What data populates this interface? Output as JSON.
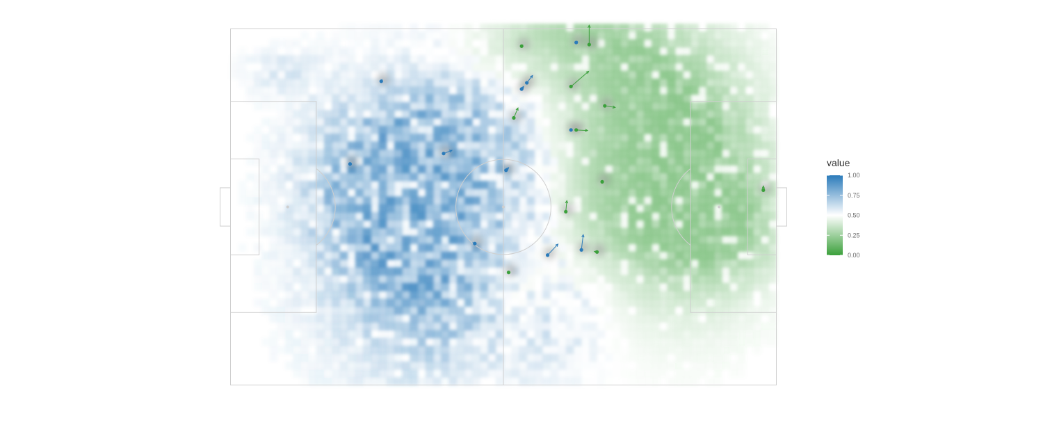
{
  "chart_data": {
    "type": "heatmap",
    "title": "",
    "xlabel": "",
    "ylabel": "",
    "xlim": [
      0,
      105
    ],
    "ylim": [
      0,
      68
    ],
    "legend": {
      "title": "value",
      "position": "right",
      "min": 0,
      "max": 1,
      "ticks": [
        "1.00",
        "0.75",
        "0.50",
        "0.25",
        "0.00"
      ],
      "tick_values": [
        1,
        0.75,
        0.5,
        0.25,
        0
      ]
    },
    "colors": {
      "high": "#2b7bba",
      "mid": "#ffffff",
      "low": "#3ba03b",
      "pitch_line": "#cfcfcf",
      "player_shadow": "#9a9a9a"
    },
    "heat_regions": [
      {
        "x": 38,
        "y": 28,
        "sx": 14,
        "sy": 17,
        "value": 0.95,
        "weight": 1.0
      },
      {
        "x": 48,
        "y": 40,
        "sx": 10,
        "sy": 13,
        "value": 0.9,
        "weight": 0.9
      },
      {
        "x": 28,
        "y": 40,
        "sx": 9,
        "sy": 10,
        "value": 0.85,
        "weight": 0.7
      },
      {
        "x": 55,
        "y": 52,
        "sx": 9,
        "sy": 8,
        "value": 0.85,
        "weight": 0.55
      },
      {
        "x": 62,
        "y": 14,
        "sx": 8,
        "sy": 8,
        "value": 0.8,
        "weight": 0.45
      },
      {
        "x": 10,
        "y": 60,
        "sx": 5,
        "sy": 3,
        "value": 0.85,
        "weight": 0.3
      },
      {
        "x": 72,
        "y": 48,
        "sx": 13,
        "sy": 17,
        "value": 0.05,
        "weight": 1.0
      },
      {
        "x": 88,
        "y": 40,
        "sx": 11,
        "sy": 16,
        "value": 0.05,
        "weight": 0.9
      },
      {
        "x": 60,
        "y": 62,
        "sx": 12,
        "sy": 6,
        "value": 0.1,
        "weight": 0.75
      },
      {
        "x": 55,
        "y": 18,
        "sx": 6,
        "sy": 8,
        "value": 0.1,
        "weight": 0.55
      },
      {
        "x": 95,
        "y": 30,
        "sx": 8,
        "sy": 7,
        "value": 0.08,
        "weight": 0.55
      }
    ],
    "players": [
      {
        "team": "home",
        "x": 29.0,
        "y": 58.0,
        "vx": 0.15,
        "vy": 0.3
      },
      {
        "team": "home",
        "x": 57.0,
        "y": 57.7,
        "vx": 1.1,
        "vy": 1.4
      },
      {
        "team": "home",
        "x": 41.0,
        "y": 44.2,
        "vx": 1.6,
        "vy": 0.6
      },
      {
        "team": "home",
        "x": 23.0,
        "y": 42.2,
        "vx": 0,
        "vy": 0
      },
      {
        "team": "home",
        "x": 53.0,
        "y": 41.0,
        "vx": 0.5,
        "vy": 0.5
      },
      {
        "team": "home",
        "x": 61.0,
        "y": 24.8,
        "vx": 2.0,
        "vy": 2.1
      },
      {
        "team": "home",
        "x": 67.5,
        "y": 25.8,
        "vx": 0.35,
        "vy": 2.9
      },
      {
        "team": "home",
        "x": 47.0,
        "y": 27.0,
        "vx": -0.35,
        "vy": 0.15
      },
      {
        "team": "home",
        "x": 65.5,
        "y": 48.7,
        "vx": 0,
        "vy": 0
      },
      {
        "team": "home",
        "x": 56.0,
        "y": 56.5,
        "vx": 0.4,
        "vy": 0.5
      },
      {
        "team": "home",
        "x": 66.5,
        "y": 65.4,
        "vx": 0.2,
        "vy": 0.2
      },
      {
        "team": "away",
        "x": 69.0,
        "y": 65.0,
        "vx": 0,
        "vy": 3.7
      },
      {
        "team": "away",
        "x": 56.0,
        "y": 64.7,
        "vx": 0.2,
        "vy": 0.2
      },
      {
        "team": "away",
        "x": 65.5,
        "y": 57.0,
        "vx": 3.4,
        "vy": 2.9
      },
      {
        "team": "away",
        "x": 54.5,
        "y": 51.0,
        "vx": 0.8,
        "vy": 1.9
      },
      {
        "team": "away",
        "x": 72.0,
        "y": 53.3,
        "vx": 2.0,
        "vy": -0.3
      },
      {
        "team": "away",
        "x": 66.5,
        "y": 48.7,
        "vx": 2.2,
        "vy": -0.1
      },
      {
        "team": "away",
        "x": 71.5,
        "y": 38.8,
        "vx": 0,
        "vy": 0
      },
      {
        "team": "away",
        "x": 64.5,
        "y": 33.1,
        "vx": 0.2,
        "vy": 2.1
      },
      {
        "team": "away",
        "x": 70.5,
        "y": 25.4,
        "vx": -0.5,
        "vy": 0.1
      },
      {
        "team": "away",
        "x": 53.5,
        "y": 21.5,
        "vx": 0,
        "vy": 0
      },
      {
        "team": "away",
        "x": 102.5,
        "y": 37.2,
        "vx": 0,
        "vy": 0.8
      }
    ]
  }
}
